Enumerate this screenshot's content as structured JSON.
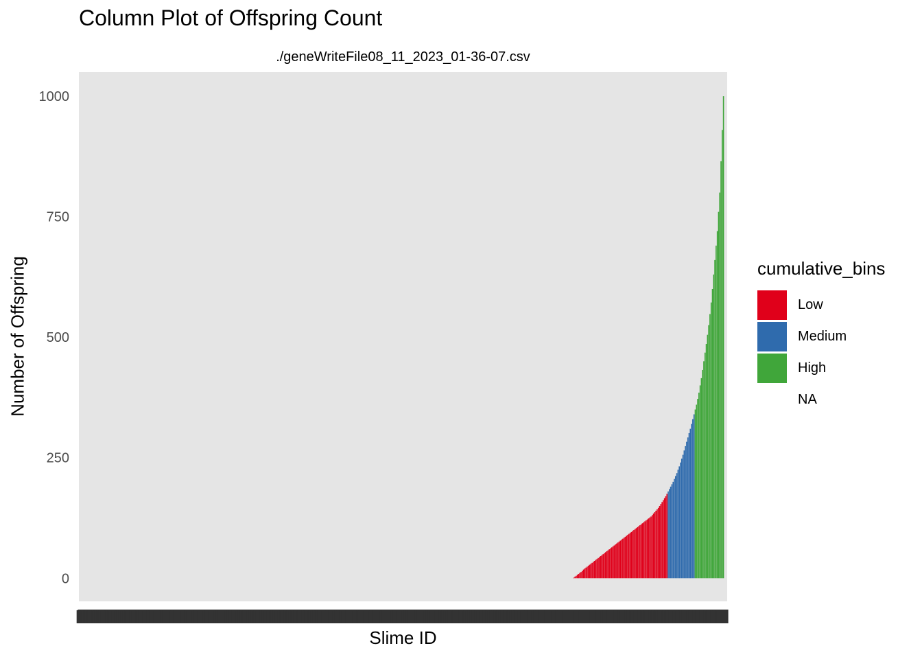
{
  "chart_data": {
    "type": "bar",
    "title": "Column Plot of Offspring Count",
    "subtitle": "./geneWriteFile08_11_2023_01-36-07.csv",
    "xlabel": "Slime ID",
    "ylabel": "Number of Offspring",
    "ylim": [
      -48,
      1050
    ],
    "yticks": [
      0,
      250,
      500,
      750,
      1000
    ],
    "grid": false,
    "legend": {
      "title": "cumulative_bins",
      "placement": "right",
      "entries": [
        "Low",
        "Medium",
        "High",
        "NA"
      ]
    },
    "colors": {
      "Low": "#E0001A",
      "Medium": "#2F6BAD",
      "High": "#40A63A",
      "panel": "#E5E5E5",
      "ticklabels": "#333333"
    },
    "zero_count_bars": 400,
    "series": [
      {
        "name": "Low",
        "values": [
          1,
          3,
          5,
          7,
          9,
          11,
          13,
          15,
          18,
          20,
          22,
          24,
          26,
          28,
          30,
          32,
          34,
          36,
          38,
          40,
          42,
          44,
          46,
          48,
          50,
          52,
          54,
          56,
          58,
          60,
          62,
          64,
          66,
          68,
          70,
          72,
          74,
          76,
          78,
          80,
          82,
          84,
          86,
          88,
          90,
          92,
          94,
          96,
          98,
          100,
          102,
          104,
          106,
          108,
          110,
          112,
          114,
          116,
          118,
          120,
          122,
          124,
          126,
          128,
          131,
          134,
          137,
          140,
          143,
          146,
          150,
          154,
          158,
          162,
          166,
          170,
          175
        ]
      },
      {
        "name": "Medium",
        "values": [
          180,
          185,
          190,
          195,
          200,
          206,
          212,
          218,
          225,
          232,
          240,
          248,
          256,
          265,
          274,
          283,
          292,
          301,
          310,
          320,
          330,
          340
        ]
      },
      {
        "name": "High",
        "values": [
          350,
          360,
          372,
          385,
          400,
          415,
          432,
          450,
          468,
          486,
          505,
          525,
          548,
          572,
          600,
          630,
          660,
          690,
          720,
          760,
          800,
          865,
          930,
          1000
        ]
      }
    ]
  }
}
